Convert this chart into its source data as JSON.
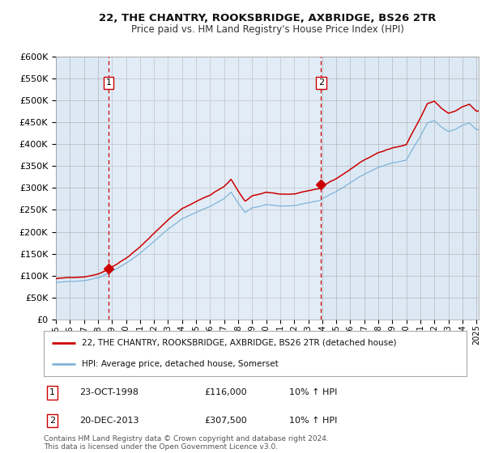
{
  "title1": "22, THE CHANTRY, ROOKSBRIDGE, AXBRIDGE, BS26 2TR",
  "title2": "Price paid vs. HM Land Registry's House Price Index (HPI)",
  "legend1": "22, THE CHANTRY, ROOKSBRIDGE, AXBRIDGE, BS26 2TR (detached house)",
  "legend2": "HPI: Average price, detached house, Somerset",
  "footnote": "Contains HM Land Registry data © Crown copyright and database right 2024.\nThis data is licensed under the Open Government Licence v3.0.",
  "background_color": "#dce9f5",
  "red_line_color": "#cc0000",
  "blue_line_color": "#7eb3d8",
  "vline_color": "#cc0000",
  "ylim": [
    0,
    600000
  ],
  "yticks": [
    0,
    50000,
    100000,
    150000,
    200000,
    250000,
    300000,
    350000,
    400000,
    450000,
    500000,
    550000,
    600000
  ]
}
